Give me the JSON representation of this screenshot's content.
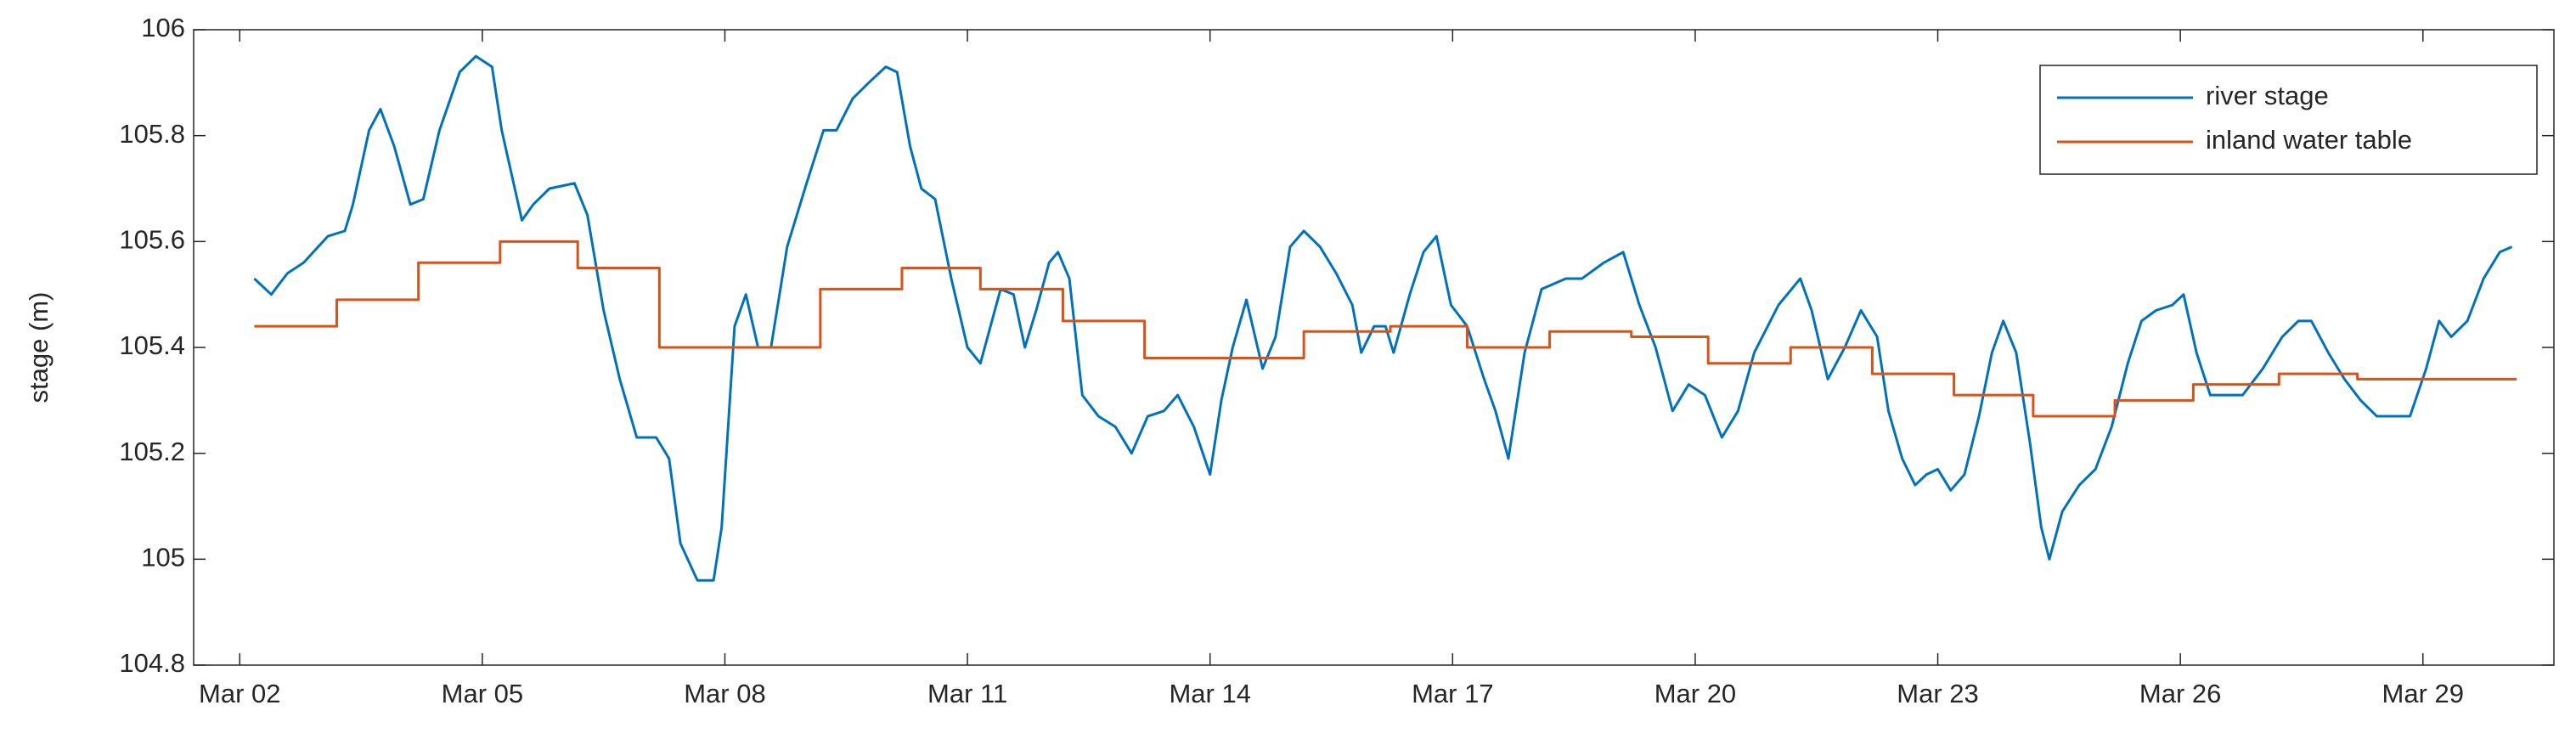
{
  "chart_data": {
    "type": "line",
    "ylabel": "stage (m)",
    "xlim": [
      1.43,
      30.62
    ],
    "xticks": [
      {
        "value": 2,
        "label": "Mar 02"
      },
      {
        "value": 5,
        "label": "Mar 05"
      },
      {
        "value": 8,
        "label": "Mar 08"
      },
      {
        "value": 11,
        "label": "Mar 11"
      },
      {
        "value": 14,
        "label": "Mar 14"
      },
      {
        "value": 17,
        "label": "Mar 17"
      },
      {
        "value": 20,
        "label": "Mar 20"
      },
      {
        "value": 23,
        "label": "Mar 23"
      },
      {
        "value": 26,
        "label": "Mar 26"
      },
      {
        "value": 29,
        "label": "Mar 29"
      }
    ],
    "ylim": [
      104.8,
      106
    ],
    "yticks": [
      104.8,
      105,
      105.2,
      105.4,
      105.6,
      105.8,
      106
    ],
    "legend": "upper right",
    "series": [
      {
        "name": "river stage",
        "color": "#0072bd",
        "x": [
          2.18,
          2.39,
          2.59,
          2.79,
          3.09,
          3.3,
          3.4,
          3.6,
          3.74,
          3.91,
          4.11,
          4.27,
          4.47,
          4.72,
          4.92,
          5.12,
          5.24,
          5.49,
          5.63,
          5.83,
          6.14,
          6.3,
          6.5,
          6.7,
          6.91,
          7.15,
          7.31,
          7.45,
          7.66,
          7.86,
          7.96,
          8.12,
          8.26,
          8.41,
          8.57,
          8.77,
          9.01,
          9.22,
          9.38,
          9.58,
          9.78,
          9.99,
          10.13,
          10.29,
          10.43,
          10.6,
          10.8,
          11.0,
          11.16,
          11.41,
          11.57,
          11.71,
          11.85,
          12.01,
          12.12,
          12.26,
          12.42,
          12.62,
          12.83,
          13.03,
          13.23,
          13.43,
          13.6,
          13.8,
          14.0,
          14.14,
          14.28,
          14.45,
          14.65,
          14.81,
          14.99,
          15.16,
          15.36,
          15.56,
          15.76,
          15.87,
          16.03,
          16.17,
          16.27,
          16.47,
          16.64,
          16.8,
          16.98,
          17.18,
          17.39,
          17.53,
          17.69,
          17.89,
          18.1,
          18.4,
          18.6,
          18.87,
          19.11,
          19.31,
          19.51,
          19.72,
          19.92,
          20.12,
          20.33,
          20.53,
          20.73,
          21.03,
          21.3,
          21.44,
          21.64,
          21.85,
          22.05,
          22.25,
          22.39,
          22.56,
          22.72,
          22.86,
          23.0,
          23.16,
          23.33,
          23.51,
          23.67,
          23.81,
          23.97,
          24.14,
          24.28,
          24.38,
          24.54,
          24.75,
          24.95,
          25.15,
          25.35,
          25.52,
          25.7,
          25.9,
          26.04,
          26.2,
          26.37,
          26.57,
          26.77,
          27.02,
          27.26,
          27.46,
          27.62,
          27.83,
          28.03,
          28.23,
          28.43,
          28.68,
          28.84,
          29.04,
          29.2,
          29.35,
          29.55,
          29.75,
          29.95,
          30.1
        ],
        "values": [
          105.53,
          105.5,
          105.54,
          105.56,
          105.61,
          105.62,
          105.67,
          105.81,
          105.85,
          105.78,
          105.67,
          105.68,
          105.81,
          105.92,
          105.95,
          105.93,
          105.81,
          105.64,
          105.67,
          105.7,
          105.71,
          105.65,
          105.47,
          105.34,
          105.23,
          105.23,
          105.19,
          105.03,
          104.96,
          104.96,
          105.06,
          105.44,
          105.5,
          105.4,
          105.4,
          105.59,
          105.71,
          105.81,
          105.81,
          105.87,
          105.9,
          105.93,
          105.92,
          105.78,
          105.7,
          105.68,
          105.53,
          105.4,
          105.37,
          105.51,
          105.5,
          105.4,
          105.47,
          105.56,
          105.58,
          105.53,
          105.31,
          105.27,
          105.25,
          105.2,
          105.27,
          105.28,
          105.31,
          105.25,
          105.16,
          105.3,
          105.4,
          105.49,
          105.36,
          105.42,
          105.59,
          105.62,
          105.59,
          105.54,
          105.48,
          105.39,
          105.44,
          105.44,
          105.39,
          105.5,
          105.58,
          105.61,
          105.48,
          105.44,
          105.34,
          105.28,
          105.19,
          105.39,
          105.51,
          105.53,
          105.53,
          105.56,
          105.58,
          105.48,
          105.4,
          105.28,
          105.33,
          105.31,
          105.23,
          105.28,
          105.39,
          105.48,
          105.53,
          105.47,
          105.34,
          105.4,
          105.47,
          105.42,
          105.28,
          105.19,
          105.14,
          105.16,
          105.17,
          105.13,
          105.16,
          105.27,
          105.39,
          105.45,
          105.39,
          105.22,
          105.06,
          105.0,
          105.09,
          105.14,
          105.17,
          105.25,
          105.37,
          105.45,
          105.47,
          105.48,
          105.5,
          105.39,
          105.31,
          105.31,
          105.31,
          105.36,
          105.42,
          105.45,
          105.45,
          105.39,
          105.34,
          105.3,
          105.27,
          105.27,
          105.27,
          105.36,
          105.45,
          105.42,
          105.45,
          105.53,
          105.58,
          105.59
        ]
      },
      {
        "name": "inland water table",
        "color": "#d95319",
        "x": [
          2.18,
          3.2,
          3.2,
          4.21,
          4.21,
          5.22,
          5.22,
          6.18,
          6.18,
          7.19,
          7.19,
          9.18,
          9.18,
          10.19,
          10.19,
          11.16,
          11.16,
          12.18,
          12.18,
          13.19,
          13.19,
          15.16,
          15.16,
          16.23,
          16.23,
          17.18,
          17.18,
          18.2,
          18.2,
          19.21,
          19.21,
          20.16,
          20.16,
          21.18,
          21.18,
          22.19,
          22.19,
          23.2,
          23.2,
          24.18,
          24.18,
          25.19,
          25.19,
          26.16,
          26.16,
          27.22,
          27.22,
          28.19,
          28.19,
          29.2,
          29.2,
          30.16
        ],
        "values": [
          105.44,
          105.44,
          105.49,
          105.49,
          105.56,
          105.56,
          105.6,
          105.6,
          105.55,
          105.55,
          105.4,
          105.4,
          105.51,
          105.51,
          105.55,
          105.55,
          105.51,
          105.51,
          105.45,
          105.45,
          105.38,
          105.38,
          105.43,
          105.43,
          105.44,
          105.44,
          105.4,
          105.4,
          105.43,
          105.43,
          105.42,
          105.42,
          105.37,
          105.37,
          105.4,
          105.4,
          105.35,
          105.35,
          105.31,
          105.31,
          105.27,
          105.27,
          105.3,
          105.3,
          105.33,
          105.33,
          105.35,
          105.35,
          105.34,
          105.34,
          105.34,
          105.34
        ]
      }
    ]
  }
}
